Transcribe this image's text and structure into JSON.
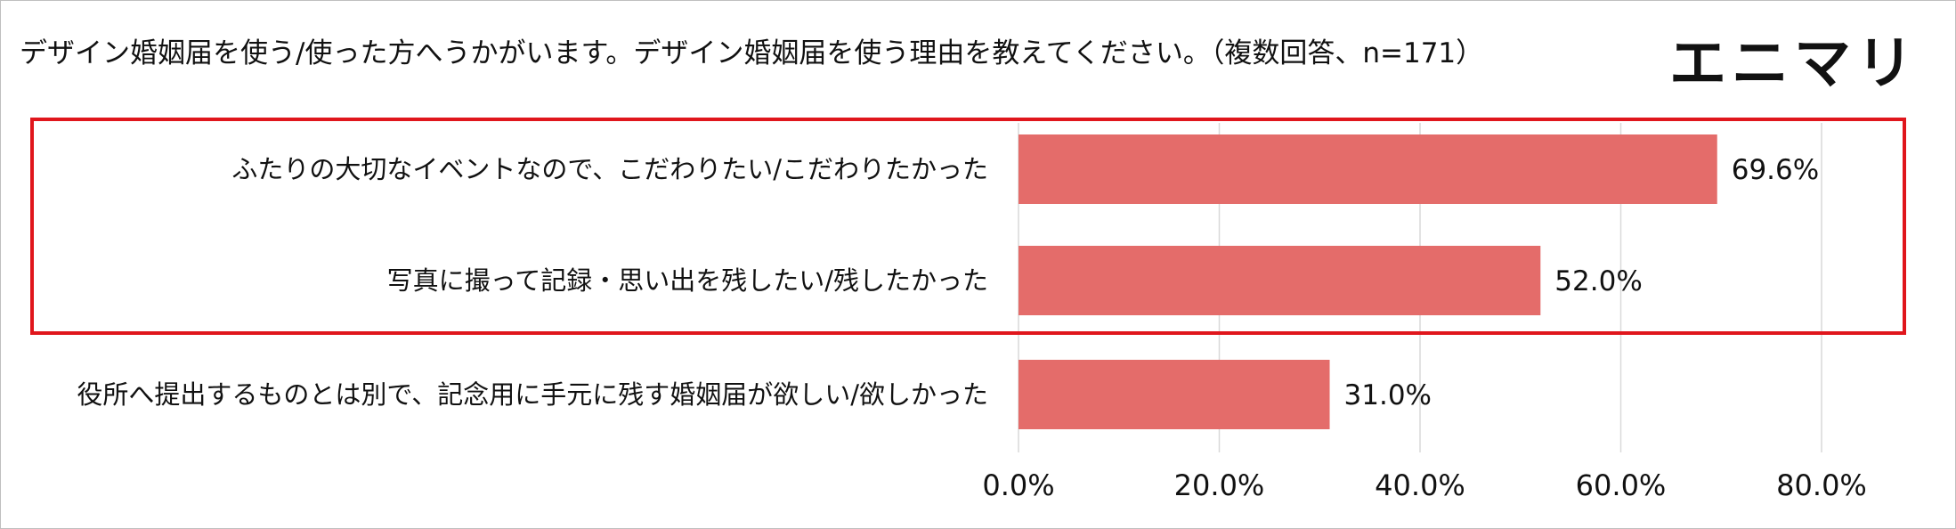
{
  "title": "デザイン婚姻届を使う/使った方へうかがいます。デザイン婚姻届を使う理由を教えてください。（複数回答、n=171）",
  "logo": "エニマリ",
  "colors": {
    "bar": "#E46C6A",
    "highlight_box": "#E0161C",
    "grid": "#D9D9D9",
    "border": "#BFBFBF"
  },
  "chart_data": {
    "type": "bar",
    "orientation": "horizontal",
    "categories": [
      "ふたりの大切なイベントなので、こだわりたい/こだわりたかった",
      "写真に撮って記録・思い出を残したい/残したかった",
      "役所へ提出するものとは別で、記念用に手元に残す婚姻届が欲しい/欲しかった"
    ],
    "values": [
      69.6,
      52.0,
      31.0
    ],
    "value_labels": [
      "69.6%",
      "52.0%",
      "31.0%"
    ],
    "xlim": [
      0,
      80
    ],
    "xticks": [
      0,
      20,
      40,
      60,
      80
    ],
    "xtick_labels": [
      "0.0%",
      "20.0%",
      "40.0%",
      "60.0%",
      "80.0%"
    ],
    "grid": true,
    "highlighted_categories": [
      0,
      1
    ]
  }
}
